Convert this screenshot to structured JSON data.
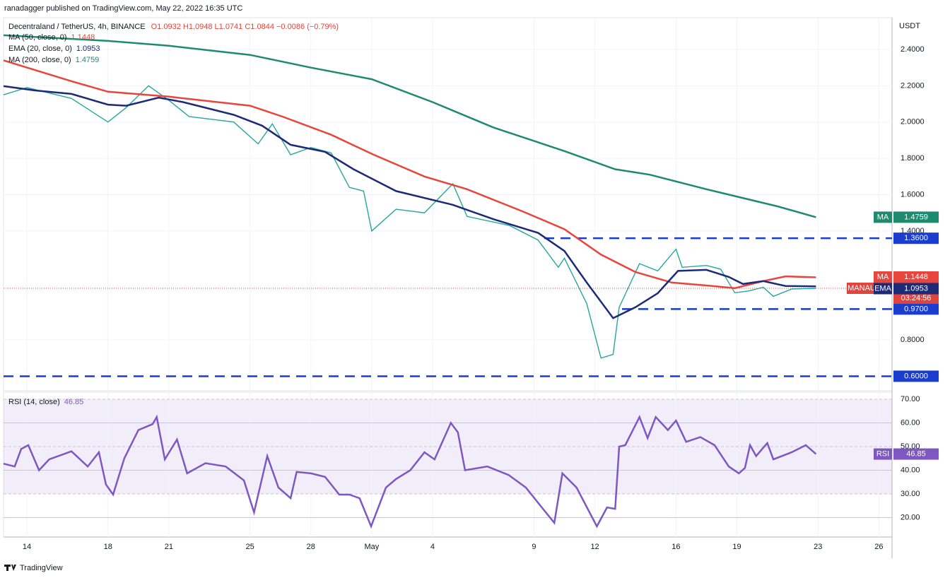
{
  "header": "ranadagger published on TradingView.com, May 22, 2022 16:35 UTC",
  "footer": "TradingView",
  "chart_data": [
    {
      "type": "line",
      "title": "Decentraland / TetherUS, 4h, BINANCE",
      "ohlc": "O1.0932 H1.0948 L1.0741 C1.0844 −0.0086 (−0.79%)",
      "axis_unit": "USDT",
      "grid": true,
      "xlim": [
        -1.15,
        42.65
      ],
      "xticks": [
        {
          "value": 0,
          "label": "14"
        },
        {
          "value": 4,
          "label": "18"
        },
        {
          "value": 7,
          "label": "21"
        },
        {
          "value": 11,
          "label": "25"
        },
        {
          "value": 14,
          "label": "28"
        },
        {
          "value": 17,
          "label": "May"
        },
        {
          "value": 20,
          "label": "4"
        },
        {
          "value": 25,
          "label": "9"
        },
        {
          "value": 28,
          "label": "12"
        },
        {
          "value": 32,
          "label": "16"
        },
        {
          "value": 35,
          "label": "19"
        },
        {
          "value": 39,
          "label": "23"
        },
        {
          "value": 42,
          "label": "26"
        }
      ],
      "ylim": [
        0.52,
        2.575
      ],
      "yticks": [
        {
          "value": 0.8,
          "label": "0.8000"
        },
        {
          "value": 1.4,
          "label": "1.4000"
        },
        {
          "value": 1.6,
          "label": "1.6000"
        },
        {
          "value": 1.8,
          "label": "1.8000"
        },
        {
          "value": 2.0,
          "label": "2.0000"
        },
        {
          "value": 2.2,
          "label": "2.2000"
        },
        {
          "value": 2.4,
          "label": "2.4000"
        }
      ],
      "series": [
        {
          "name": "MA (50, close, 0)",
          "tag": "MA",
          "color": "#e8453c",
          "x": [
            -1.15,
            2.2,
            4,
            7,
            11,
            12.6,
            15,
            17.1,
            19.6,
            21.7,
            24.5,
            26.5,
            28.3,
            30,
            31.8,
            33.5,
            34.9,
            36.3,
            37.4,
            38.9
          ],
          "values": [
            2.34,
            2.225,
            2.167,
            2.14,
            2.09,
            2.03,
            1.93,
            1.82,
            1.7,
            1.63,
            1.505,
            1.41,
            1.27,
            1.174,
            1.116,
            1.1,
            1.085,
            1.124,
            1.15,
            1.1448
          ]
        },
        {
          "name": "EMA (20, close, 0)",
          "tag": "EMA",
          "color": "#1c2a78",
          "x": [
            -1.15,
            0.4,
            2.2,
            4,
            4.9,
            6.5,
            7.7,
            10.2,
            11.6,
            13,
            14.7,
            16.1,
            18.2,
            21,
            23,
            25.2,
            26.5,
            27.6,
            28.9,
            30,
            31.1,
            32.1,
            33.5,
            34.6,
            35.3,
            36.3,
            37.4,
            38.9
          ],
          "values": [
            2.198,
            2.174,
            2.155,
            2.096,
            2.09,
            2.135,
            2.11,
            2.04,
            1.98,
            1.875,
            1.836,
            1.74,
            1.62,
            1.544,
            1.465,
            1.39,
            1.29,
            1.116,
            0.92,
            0.98,
            1.057,
            1.18,
            1.186,
            1.147,
            1.108,
            1.124,
            1.097,
            1.0953
          ]
        },
        {
          "name": "MA (200, close, 0)",
          "tag": "MA",
          "color": "#1f8a70",
          "x": [
            -1.15,
            4,
            7,
            11,
            14,
            17,
            20,
            23,
            26.5,
            29,
            30.7,
            33.5,
            37,
            38.9
          ],
          "values": [
            2.478,
            2.447,
            2.42,
            2.37,
            2.3,
            2.236,
            2.11,
            1.97,
            1.84,
            1.74,
            1.71,
            1.63,
            1.536,
            1.4759
          ]
        }
      ],
      "price": {
        "name": "MANAUSDT",
        "color": "#26a69a",
        "tag_color": "#e0443d",
        "countdown": "03:24:56",
        "x": [
          -1.15,
          0,
          2.2,
          4,
          4.9,
          6,
          7,
          8,
          10.2,
          11.4,
          12.1,
          13,
          14,
          15,
          15.9,
          16.6,
          17,
          18.2,
          19.6,
          21,
          21.7,
          23.8,
          25.2,
          26.2,
          26.5,
          27.6,
          28.3,
          28.9,
          29.2,
          29.7,
          30.2,
          31.1,
          32,
          32.3,
          33.5,
          34.2,
          34.9,
          35.6,
          36.3,
          36.8,
          37.7,
          38.9
        ],
        "values": [
          2.15,
          2.19,
          2.13,
          2.0,
          2.08,
          2.2,
          2.12,
          2.03,
          2.0,
          1.88,
          1.99,
          1.82,
          1.86,
          1.83,
          1.64,
          1.62,
          1.4,
          1.52,
          1.5,
          1.66,
          1.48,
          1.43,
          1.35,
          1.2,
          1.25,
          1.0,
          0.7,
          0.72,
          0.98,
          1.1,
          1.22,
          1.18,
          1.3,
          1.2,
          1.21,
          1.19,
          1.06,
          1.07,
          1.09,
          1.04,
          1.08,
          1.0844
        ]
      },
      "level_color": "#1a3ccf",
      "levels": [
        {
          "value": 1.36,
          "label": "1.3600"
        },
        {
          "value": 0.97,
          "label": "0.9700"
        },
        {
          "value": 0.6,
          "label": "0.6000"
        }
      ]
    },
    {
      "type": "line",
      "grid": true,
      "xlim": [
        -1.15,
        42.65
      ],
      "ylim": [
        11.8,
        73
      ],
      "yticks": [
        {
          "value": 20,
          "label": "20.00"
        },
        {
          "value": 30,
          "label": "30.00"
        },
        {
          "value": 40,
          "label": "40.00"
        },
        {
          "value": 50,
          "label": "50.00"
        },
        {
          "value": 60,
          "label": "60.00"
        },
        {
          "value": 70,
          "label": "70.00"
        }
      ],
      "band": [
        30,
        70
      ],
      "series": [
        {
          "name": "RSI (14, close)",
          "tag": "RSI",
          "color": "#7e57c2",
          "x": [
            -1.15,
            -0.6,
            -0.28,
            0.07,
            0.6,
            1.1,
            2.2,
            3,
            3.55,
            3.9,
            4.25,
            4.8,
            5.5,
            6.2,
            6.4,
            6.8,
            7.4,
            7.9,
            8.8,
            9.8,
            10.7,
            11.2,
            11.85,
            12.4,
            13,
            13.3,
            14,
            14.7,
            15.4,
            15.9,
            16.4,
            16.97,
            17.7,
            18.2,
            18.9,
            19.6,
            20.1,
            20.9,
            21.25,
            21.6,
            22.7,
            23.75,
            24.6,
            25.3,
            26,
            26.4,
            27.1,
            28.1,
            28.6,
            29,
            29.2,
            29.5,
            30.2,
            30.6,
            31,
            31.6,
            32,
            32.5,
            33.2,
            33.9,
            34.6,
            35.1,
            35.4,
            35.65,
            35.95,
            36.5,
            36.8,
            37.7,
            38.4,
            38.9
          ],
          "values": [
            42.8,
            41.6,
            49,
            50.6,
            40,
            44.6,
            48,
            41.6,
            47.6,
            34,
            29.7,
            45,
            57,
            59.5,
            62.5,
            44.6,
            53,
            38.7,
            43,
            41.6,
            35.7,
            22.2,
            46,
            32.7,
            28.2,
            39.3,
            38.7,
            37.2,
            29.7,
            29.7,
            28.2,
            16.3,
            32.7,
            36.3,
            40,
            47.6,
            44.6,
            60,
            56,
            40,
            41.6,
            38,
            32.7,
            25.2,
            17.8,
            38.7,
            32.7,
            16.3,
            24.3,
            23.7,
            50,
            50.6,
            62.5,
            53.6,
            62.5,
            57,
            61,
            52,
            54,
            50.6,
            41.6,
            38.7,
            41,
            50.6,
            46,
            51.5,
            44.6,
            47.6,
            50.6,
            46.85
          ]
        }
      ]
    }
  ]
}
